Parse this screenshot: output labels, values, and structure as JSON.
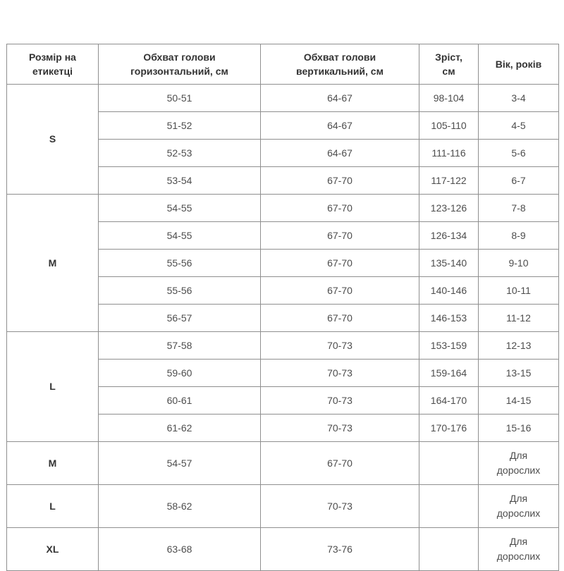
{
  "colors": {
    "border": "#8f8f8f",
    "header_text": "#333333",
    "cell_text": "#4d4d4d",
    "background": "#ffffff"
  },
  "table": {
    "headers": [
      "Розмір на етикетці",
      "Обхват голови горизонтальний, см",
      "Обхват голови вертикальний, см",
      "Зріст, см",
      "Вік, років"
    ],
    "groups": [
      {
        "size": "S",
        "rows": [
          [
            "50-51",
            "64-67",
            "98-104",
            "3-4"
          ],
          [
            "51-52",
            "64-67",
            "105-110",
            "4-5"
          ],
          [
            "52-53",
            "64-67",
            "111-116",
            "5-6"
          ],
          [
            "53-54",
            "67-70",
            "117-122",
            "6-7"
          ]
        ]
      },
      {
        "size": "M",
        "rows": [
          [
            "54-55",
            "67-70",
            "123-126",
            "7-8"
          ],
          [
            "54-55",
            "67-70",
            "126-134",
            "8-9"
          ],
          [
            "55-56",
            "67-70",
            "135-140",
            "9-10"
          ],
          [
            "55-56",
            "67-70",
            "140-146",
            "10-11"
          ],
          [
            "56-57",
            "67-70",
            "146-153",
            "11-12"
          ]
        ]
      },
      {
        "size": "L",
        "rows": [
          [
            "57-58",
            "70-73",
            "153-159",
            "12-13"
          ],
          [
            "59-60",
            "70-73",
            "159-164",
            "13-15"
          ],
          [
            "60-61",
            "70-73",
            "164-170",
            "14-15"
          ],
          [
            "61-62",
            "70-73",
            "170-176",
            "15-16"
          ]
        ]
      }
    ],
    "adult_rows": [
      {
        "size": "M",
        "horizontal": "54-57",
        "vertical": "67-70",
        "height": "",
        "age": "Для дорослих"
      },
      {
        "size": "L",
        "horizontal": "58-62",
        "vertical": "70-73",
        "height": "",
        "age": "Для дорослих"
      },
      {
        "size": "XL",
        "horizontal": "63-68",
        "vertical": "73-76",
        "height": "",
        "age": "Для дорослих"
      }
    ]
  },
  "chart_data": {
    "type": "table",
    "title": "",
    "columns": [
      "Розмір на етикетці",
      "Обхват голови горизонтальний, см",
      "Обхват голови вертикальний, см",
      "Зріст, см",
      "Вік, років"
    ],
    "rows": [
      [
        "S",
        "50-51",
        "64-67",
        "98-104",
        "3-4"
      ],
      [
        "S",
        "51-52",
        "64-67",
        "105-110",
        "4-5"
      ],
      [
        "S",
        "52-53",
        "64-67",
        "111-116",
        "5-6"
      ],
      [
        "S",
        "53-54",
        "67-70",
        "117-122",
        "6-7"
      ],
      [
        "M",
        "54-55",
        "67-70",
        "123-126",
        "7-8"
      ],
      [
        "M",
        "54-55",
        "67-70",
        "126-134",
        "8-9"
      ],
      [
        "M",
        "55-56",
        "67-70",
        "135-140",
        "9-10"
      ],
      [
        "M",
        "55-56",
        "67-70",
        "140-146",
        "10-11"
      ],
      [
        "M",
        "56-57",
        "67-70",
        "146-153",
        "11-12"
      ],
      [
        "L",
        "57-58",
        "70-73",
        "153-159",
        "12-13"
      ],
      [
        "L",
        "59-60",
        "70-73",
        "159-164",
        "13-15"
      ],
      [
        "L",
        "60-61",
        "70-73",
        "164-170",
        "14-15"
      ],
      [
        "L",
        "61-62",
        "70-73",
        "170-176",
        "15-16"
      ],
      [
        "M",
        "54-57",
        "67-70",
        "",
        "Для дорослих"
      ],
      [
        "L",
        "58-62",
        "70-73",
        "",
        "Для дорослих"
      ],
      [
        "XL",
        "63-68",
        "73-76",
        "",
        "Для дорослих"
      ]
    ]
  }
}
